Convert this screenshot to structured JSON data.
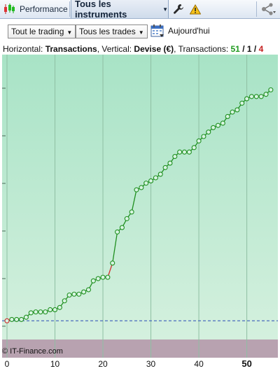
{
  "toolbar": {
    "performance_label": "Performance",
    "instruments_label": "Tous les instruments",
    "icons": [
      "candlestick-icon",
      "wrench-icon",
      "warning-icon",
      "share-icon",
      "chevron-down-icon"
    ]
  },
  "filters": {
    "trading_select": "Tout le trading",
    "trades_select": "Tous les trades",
    "today_label": "Aujourd'hui"
  },
  "info": {
    "horizontal_prefix": "Horizontal: ",
    "horizontal_value": "Transactions",
    "vertical_prefix": ", Vertical: ",
    "vertical_value": "Devise (€)",
    "transactions_prefix": ", Transactions: ",
    "win_count": "51",
    "slash1": " / ",
    "even_count": "1",
    "slash2": " / ",
    "loss_count": "4"
  },
  "watermark": "© IT-Finance.com",
  "colors": {
    "line": "#1f8f1f",
    "loss_segment": "#d03030",
    "fill_top": "#a8e3c6",
    "fill_bottom": "#d4f0de",
    "loss_zone": "#b8a2b0",
    "baseline": "#2a4db5"
  },
  "chart_data": {
    "type": "line",
    "title": "",
    "xlabel": "Transactions",
    "ylabel": "Devise (€)",
    "x_ticks": [
      "0",
      "10",
      "20",
      "30",
      "40",
      "50"
    ],
    "x_tick_values": [
      0,
      10,
      20,
      30,
      40,
      50
    ],
    "xlim": [
      0,
      57
    ],
    "y_ticks_shown": false,
    "ylim": [
      -0.2,
      5.6
    ],
    "grid": "vertical and horizontal",
    "loss_indexes": [
      1,
      10,
      22,
      38
    ],
    "series": [
      {
        "name": "",
        "values": [
          0,
          0.03,
          0.03,
          0.03,
          0.08,
          0.18,
          0.2,
          0.2,
          0.2,
          0.25,
          0.25,
          0.3,
          0.45,
          0.58,
          0.6,
          0.6,
          0.65,
          0.7,
          0.9,
          0.95,
          0.98,
          0.98,
          1.3,
          2.0,
          2.1,
          2.3,
          2.45,
          2.95,
          3.0,
          3.1,
          3.15,
          3.22,
          3.3,
          3.45,
          3.55,
          3.7,
          3.8,
          3.8,
          3.8,
          3.9,
          4.05,
          4.15,
          4.25,
          4.35,
          4.4,
          4.45,
          4.6,
          4.7,
          4.75,
          4.9,
          5.0,
          5.05,
          5.05,
          5.05,
          5.1,
          5.2
        ]
      }
    ]
  }
}
